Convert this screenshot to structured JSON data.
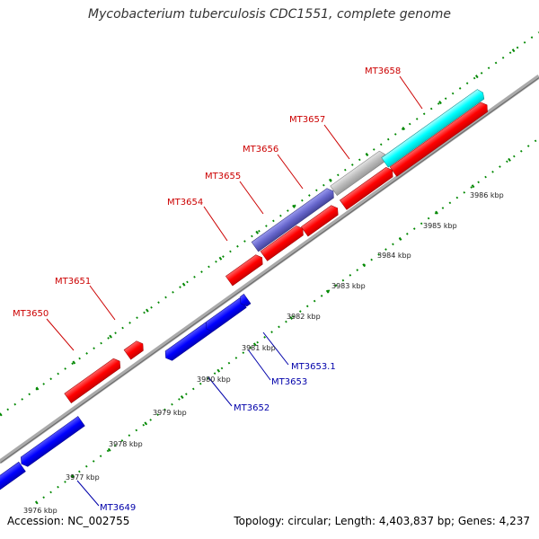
{
  "title": "Mycobacterium tuberculosis CDC1551, complete genome",
  "footer": {
    "accession": "Accession: NC_002755",
    "summary": "Topology: circular; Length: 4,403,837 bp; Genes: 4,237"
  },
  "colors": {
    "forward_gene": "#ff0000",
    "reverse_gene": "#0000ff",
    "highlight_gene": "#00ffff",
    "purple_gene": "#6666cc",
    "gray_gene": "#bbbbbb",
    "backbone": "#999999",
    "tick": "#008800",
    "forward_label": "#cc0000",
    "reverse_label": "#0000aa",
    "scale_label": "#222222"
  },
  "scale_labels": [
    {
      "label": "3976 kbp"
    },
    {
      "label": "3977 kbp"
    },
    {
      "label": "3978 kbp"
    },
    {
      "label": "3979 kbp"
    },
    {
      "label": "3980 kbp"
    },
    {
      "label": "3981 kbp"
    },
    {
      "label": "3982 kbp"
    },
    {
      "label": "3983 kbp"
    },
    {
      "label": "3984 kbp"
    },
    {
      "label": "3985 kbp"
    },
    {
      "label": "3986 kbp"
    }
  ],
  "forward_labels": [
    "MT3650",
    "MT3651",
    "MT3654",
    "MT3655",
    "MT3656",
    "MT3657",
    "MT3658"
  ],
  "reverse_labels": [
    "MT3649",
    "MT3652",
    "MT3653",
    "MT3653.1"
  ]
}
